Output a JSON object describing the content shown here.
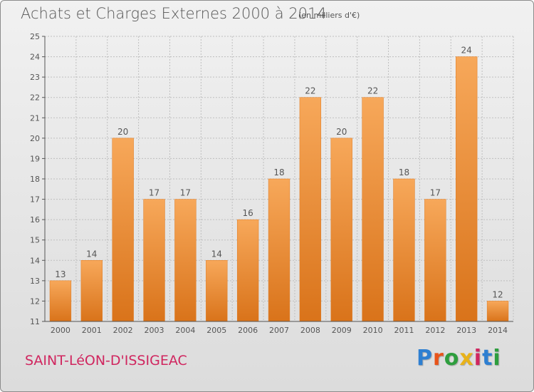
{
  "header": {
    "title": "Achats et Charges Externes 2000 à 2014",
    "unit_note": "(en milliers d'€)"
  },
  "footer": {
    "commune": "SAINT-LéON-D'ISSIGEAC",
    "logo_letters": [
      "P",
      "r",
      "o",
      "x",
      "i",
      "t",
      "i"
    ],
    "logo_colors": [
      "#2e7fd1",
      "#e8541a",
      "#2e9e3e",
      "#e8b21a",
      "#d0265f",
      "#2e7fd1",
      "#2e9e3e"
    ]
  },
  "chart_data": {
    "type": "bar",
    "title": "Achats et Charges Externes 2000 à 2014",
    "subtitle": "(en milliers d'€)",
    "xlabel": "",
    "ylabel": "",
    "categories": [
      "2000",
      "2001",
      "2002",
      "2003",
      "2004",
      "2005",
      "2006",
      "2007",
      "2008",
      "2009",
      "2010",
      "2011",
      "2012",
      "2013",
      "2014"
    ],
    "values": [
      13,
      14,
      20,
      17,
      17,
      14,
      16,
      18,
      22,
      20,
      22,
      18,
      17,
      24,
      12
    ],
    "ylim": [
      11,
      25
    ],
    "yticks": [
      11,
      12,
      13,
      14,
      15,
      16,
      17,
      18,
      19,
      20,
      21,
      22,
      23,
      24,
      25
    ],
    "grid": true,
    "legend": "none",
    "bar_color": "#f08a2c",
    "bar_color_light": "#f7a85a",
    "bar_color_dark": "#d9731a",
    "grid_color": "#bfbfbf",
    "axis_color": "#555555"
  }
}
